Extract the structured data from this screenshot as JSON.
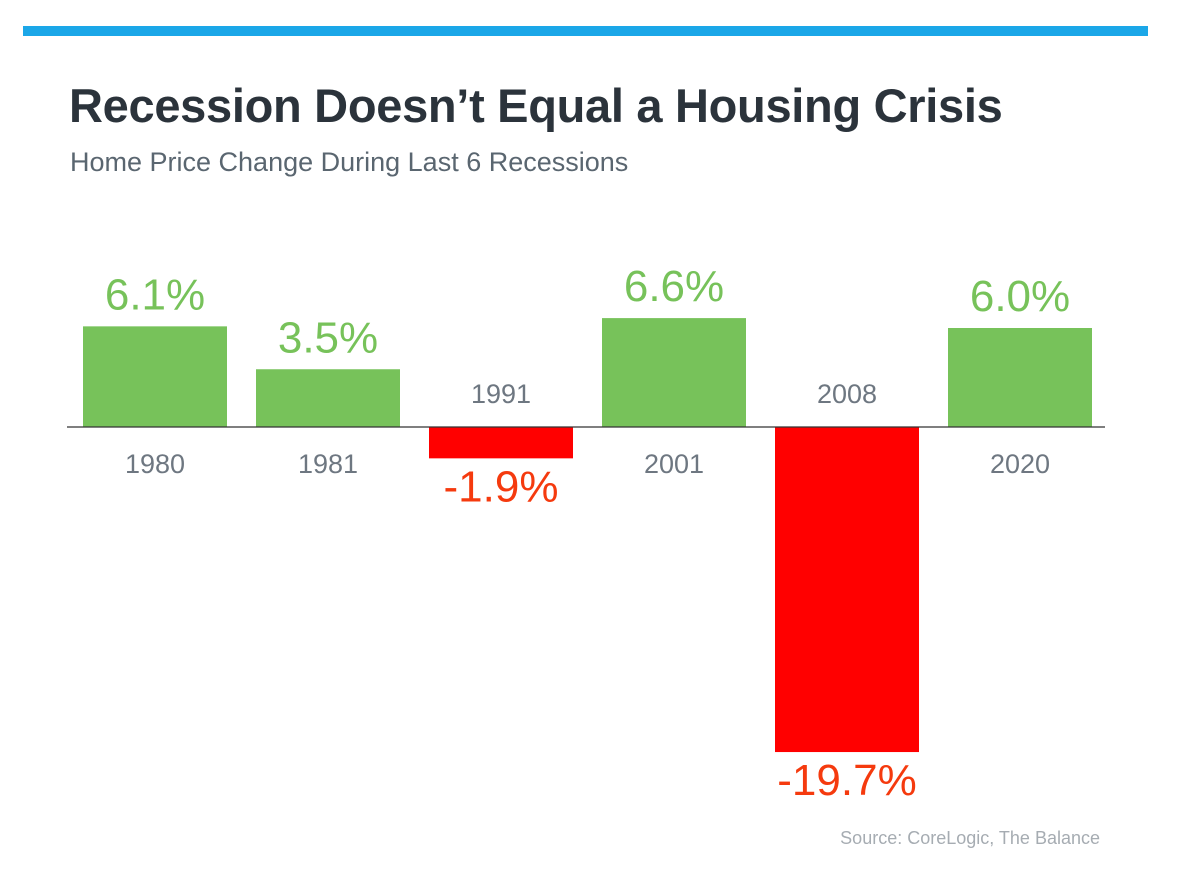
{
  "header": {
    "title": "Recession Doesn’t Equal a Housing Crisis",
    "subtitle": "Home Price Change During Last 6 Recessions"
  },
  "footer": {
    "source": "Source: CoreLogic, The Balance"
  },
  "colors": {
    "accent_bar": "#1ba7e8",
    "positive": "#77c25a",
    "negative": "#ff0000",
    "negative_label": "#f53a0e",
    "category_label": "#6e7781",
    "baseline": "#333333"
  },
  "chart_data": {
    "type": "bar",
    "title": "Recession Doesn’t Equal a Housing Crisis",
    "subtitle": "Home Price Change During Last 6 Recessions",
    "categories": [
      "1980",
      "1981",
      "1991",
      "2001",
      "2008",
      "2020"
    ],
    "values": [
      6.1,
      3.5,
      -1.9,
      6.6,
      -19.7,
      6.0
    ],
    "data_labels": [
      "6.1%",
      "3.5%",
      "-1.9%",
      "6.6%",
      "-19.7%",
      "6.0%"
    ],
    "unit": "%",
    "xlabel": "",
    "ylabel": "",
    "ylim": [
      -19.7,
      6.6
    ],
    "grid": false,
    "legend": "none"
  }
}
